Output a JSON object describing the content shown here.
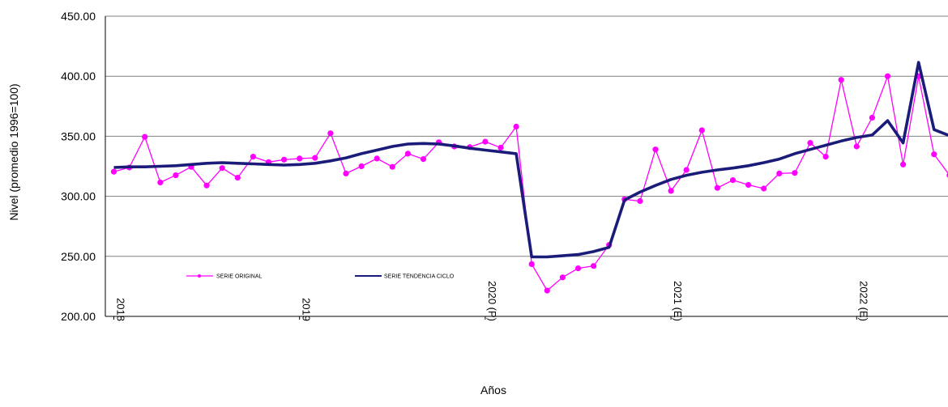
{
  "chart_data": {
    "type": "line",
    "xlabel": "Años",
    "ylabel": "Nivel (promedio 1996=100)",
    "ylim": [
      200,
      450
    ],
    "y_ticks": [
      "450.00",
      "400.00",
      "350.00",
      "300.00",
      "250.00",
      "200.00"
    ],
    "x_tick_labels": [
      "2018",
      "2019",
      "2020 (P)",
      "2021 (E)",
      "2022 (E)"
    ],
    "grid": true,
    "legend_position": "lower-left inside plot",
    "series": [
      {
        "name": "SERIE ORIGINAL",
        "color": "#FF00FF",
        "marker": "circle",
        "values": [
          320.5,
          324,
          349.5,
          311.5,
          317.5,
          324.5,
          309,
          323.5,
          315.5,
          333,
          328.5,
          330.5,
          331.5,
          332,
          352.5,
          319,
          325,
          331.5,
          324.5,
          335.5,
          331,
          345,
          341.5,
          341,
          345.5,
          340.5,
          358,
          243.5,
          221.5,
          232.5,
          240,
          242,
          259.5,
          297.5,
          296,
          339,
          304.5,
          322,
          355,
          307,
          313.5,
          309.5,
          306.5,
          319,
          319.5,
          344.5,
          333,
          397,
          341.5,
          365.5,
          400,
          326.5,
          400,
          335,
          317.5
        ]
      },
      {
        "name": "SERIE TENDENCIA CICLO",
        "color": "#1B1B7A",
        "marker": "none",
        "values": [
          324,
          324.5,
          324.5,
          325,
          325.5,
          326.5,
          327.5,
          328,
          327.5,
          327,
          326.5,
          326,
          326.5,
          327.5,
          329.5,
          332,
          335.5,
          338.5,
          341.5,
          343.5,
          344,
          343.5,
          342,
          340,
          338.5,
          337,
          335.5,
          249.5,
          249.5,
          250.5,
          251.5,
          254,
          257.5,
          297,
          303.5,
          309,
          314,
          317.5,
          320,
          322,
          323.5,
          325.5,
          328,
          331,
          335.5,
          339,
          342.5,
          346,
          349,
          351,
          363,
          344.5,
          411.5,
          355.5,
          350.5
        ]
      }
    ]
  }
}
